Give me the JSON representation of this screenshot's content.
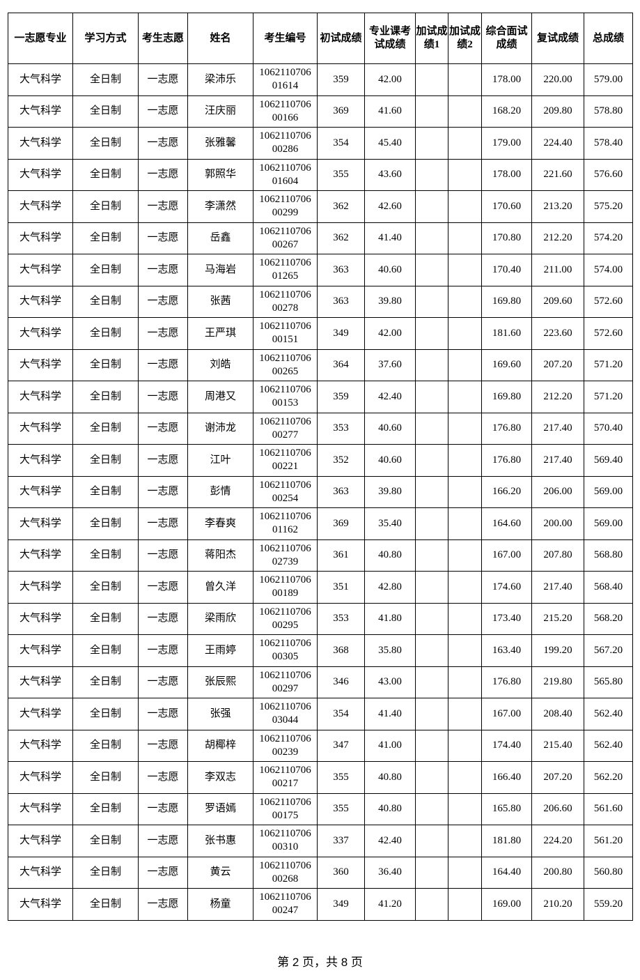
{
  "headers": [
    "一志愿专业",
    "学习方式",
    "考生志愿",
    "姓名",
    "考生编号",
    "初试成绩",
    "专业课考试成绩",
    "加试成绩1",
    "加试成绩2",
    "综合面试成绩",
    "复试成绩",
    "总成绩"
  ],
  "rows": [
    [
      "大气科学",
      "全日制",
      "一志愿",
      "梁沛乐",
      "106211070601614",
      "359",
      "42.00",
      "",
      "",
      "178.00",
      "220.00",
      "579.00"
    ],
    [
      "大气科学",
      "全日制",
      "一志愿",
      "汪庆丽",
      "106211070600166",
      "369",
      "41.60",
      "",
      "",
      "168.20",
      "209.80",
      "578.80"
    ],
    [
      "大气科学",
      "全日制",
      "一志愿",
      "张雅馨",
      "106211070600286",
      "354",
      "45.40",
      "",
      "",
      "179.00",
      "224.40",
      "578.40"
    ],
    [
      "大气科学",
      "全日制",
      "一志愿",
      "郭照华",
      "106211070601604",
      "355",
      "43.60",
      "",
      "",
      "178.00",
      "221.60",
      "576.60"
    ],
    [
      "大气科学",
      "全日制",
      "一志愿",
      "李潇然",
      "106211070600299",
      "362",
      "42.60",
      "",
      "",
      "170.60",
      "213.20",
      "575.20"
    ],
    [
      "大气科学",
      "全日制",
      "一志愿",
      "岳鑫",
      "106211070600267",
      "362",
      "41.40",
      "",
      "",
      "170.80",
      "212.20",
      "574.20"
    ],
    [
      "大气科学",
      "全日制",
      "一志愿",
      "马海岩",
      "106211070601265",
      "363",
      "40.60",
      "",
      "",
      "170.40",
      "211.00",
      "574.00"
    ],
    [
      "大气科学",
      "全日制",
      "一志愿",
      "张茜",
      "106211070600278",
      "363",
      "39.80",
      "",
      "",
      "169.80",
      "209.60",
      "572.60"
    ],
    [
      "大气科学",
      "全日制",
      "一志愿",
      "王严琪",
      "106211070600151",
      "349",
      "42.00",
      "",
      "",
      "181.60",
      "223.60",
      "572.60"
    ],
    [
      "大气科学",
      "全日制",
      "一志愿",
      "刘皓",
      "106211070600265",
      "364",
      "37.60",
      "",
      "",
      "169.60",
      "207.20",
      "571.20"
    ],
    [
      "大气科学",
      "全日制",
      "一志愿",
      "周港又",
      "106211070600153",
      "359",
      "42.40",
      "",
      "",
      "169.80",
      "212.20",
      "571.20"
    ],
    [
      "大气科学",
      "全日制",
      "一志愿",
      "谢沛龙",
      "106211070600277",
      "353",
      "40.60",
      "",
      "",
      "176.80",
      "217.40",
      "570.40"
    ],
    [
      "大气科学",
      "全日制",
      "一志愿",
      "江叶",
      "106211070600221",
      "352",
      "40.60",
      "",
      "",
      "176.80",
      "217.40",
      "569.40"
    ],
    [
      "大气科学",
      "全日制",
      "一志愿",
      "彭情",
      "106211070600254",
      "363",
      "39.80",
      "",
      "",
      "166.20",
      "206.00",
      "569.00"
    ],
    [
      "大气科学",
      "全日制",
      "一志愿",
      "李春爽",
      "106211070601162",
      "369",
      "35.40",
      "",
      "",
      "164.60",
      "200.00",
      "569.00"
    ],
    [
      "大气科学",
      "全日制",
      "一志愿",
      "蒋阳杰",
      "106211070602739",
      "361",
      "40.80",
      "",
      "",
      "167.00",
      "207.80",
      "568.80"
    ],
    [
      "大气科学",
      "全日制",
      "一志愿",
      "曾久洋",
      "106211070600189",
      "351",
      "42.80",
      "",
      "",
      "174.60",
      "217.40",
      "568.40"
    ],
    [
      "大气科学",
      "全日制",
      "一志愿",
      "梁雨欣",
      "106211070600295",
      "353",
      "41.80",
      "",
      "",
      "173.40",
      "215.20",
      "568.20"
    ],
    [
      "大气科学",
      "全日制",
      "一志愿",
      "王雨婷",
      "106211070600305",
      "368",
      "35.80",
      "",
      "",
      "163.40",
      "199.20",
      "567.20"
    ],
    [
      "大气科学",
      "全日制",
      "一志愿",
      "张辰熙",
      "106211070600297",
      "346",
      "43.00",
      "",
      "",
      "176.80",
      "219.80",
      "565.80"
    ],
    [
      "大气科学",
      "全日制",
      "一志愿",
      "张强",
      "106211070603044",
      "354",
      "41.40",
      "",
      "",
      "167.00",
      "208.40",
      "562.40"
    ],
    [
      "大气科学",
      "全日制",
      "一志愿",
      "胡椰梓",
      "106211070600239",
      "347",
      "41.00",
      "",
      "",
      "174.40",
      "215.40",
      "562.40"
    ],
    [
      "大气科学",
      "全日制",
      "一志愿",
      "李双志",
      "106211070600217",
      "355",
      "40.80",
      "",
      "",
      "166.40",
      "207.20",
      "562.20"
    ],
    [
      "大气科学",
      "全日制",
      "一志愿",
      "罗语嫣",
      "106211070600175",
      "355",
      "40.80",
      "",
      "",
      "165.80",
      "206.60",
      "561.60"
    ],
    [
      "大气科学",
      "全日制",
      "一志愿",
      "张书惠",
      "106211070600310",
      "337",
      "42.40",
      "",
      "",
      "181.80",
      "224.20",
      "561.20"
    ],
    [
      "大气科学",
      "全日制",
      "一志愿",
      "黄云",
      "106211070600268",
      "360",
      "36.40",
      "",
      "",
      "164.40",
      "200.80",
      "560.80"
    ],
    [
      "大气科学",
      "全日制",
      "一志愿",
      "杨童",
      "106211070600247",
      "349",
      "41.20",
      "",
      "",
      "169.00",
      "210.20",
      "559.20"
    ]
  ],
  "footer": "第 2 页，共 8 页"
}
